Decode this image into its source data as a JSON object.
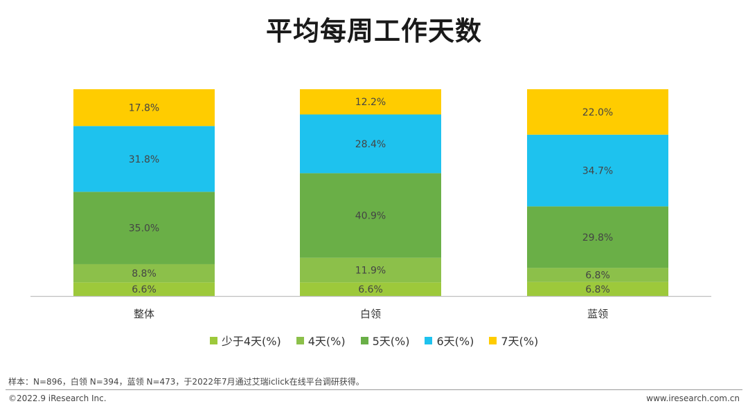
{
  "chart_data": {
    "type": "bar",
    "stacked": true,
    "title": "平均每周工作天数",
    "categories": [
      "整体",
      "白领",
      "蓝领"
    ],
    "ylim": [
      0,
      100
    ],
    "series": [
      {
        "name": "少于4天(%)",
        "color": "#9DC93B",
        "values": [
          6.6,
          6.6,
          6.8
        ],
        "labels": [
          "6.6%",
          "6.6%",
          "6.8%"
        ]
      },
      {
        "name": "4天(%)",
        "color": "#8CC04A",
        "values": [
          8.8,
          11.9,
          6.8
        ],
        "labels": [
          "8.8%",
          "11.9%",
          "6.8%"
        ]
      },
      {
        "name": "5天(%)",
        "color": "#6AAF47",
        "values": [
          35.0,
          40.9,
          29.8
        ],
        "labels": [
          "35.0%",
          "40.9%",
          "29.8%"
        ]
      },
      {
        "name": "6天(%)",
        "color": "#1EC2EE",
        "values": [
          31.8,
          28.4,
          34.7
        ],
        "labels": [
          "31.8%",
          "28.4%",
          "34.7%"
        ]
      },
      {
        "name": "7天(%)",
        "color": "#FFCC00",
        "values": [
          17.8,
          12.2,
          22.0
        ],
        "labels": [
          "17.8%",
          "12.2%",
          "22.0%"
        ]
      }
    ],
    "grid": false,
    "legend_position": "bottom"
  },
  "footnote": "样本：N=896，白领 N=394，蓝领 N=473，于2022年7月通过艾瑞iclick在线平台调研获得。",
  "copyright": "©2022.9 iResearch Inc.",
  "website": "www.iresearch.com.cn"
}
